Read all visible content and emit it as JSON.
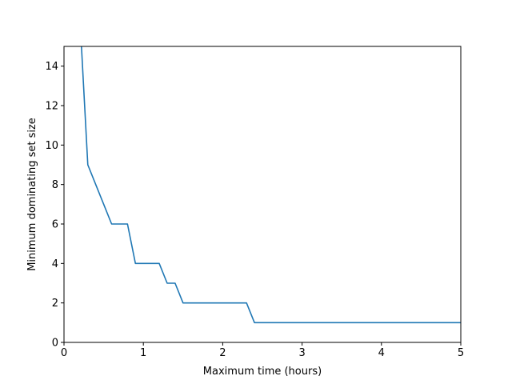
{
  "chart_data": {
    "type": "line",
    "title": "",
    "xlabel": "Maximum time (hours)",
    "ylabel": "Minimum dominating set size",
    "xlim": [
      0,
      5
    ],
    "ylim": [
      0,
      15
    ],
    "grid": false,
    "x_ticks": [
      0,
      1,
      2,
      3,
      4,
      5
    ],
    "x_tick_labels": [
      "0",
      "1",
      "2",
      "3",
      "4",
      "5"
    ],
    "y_ticks": [
      0,
      2,
      4,
      6,
      8,
      10,
      12,
      14
    ],
    "y_tick_labels": [
      "0",
      "2",
      "4",
      "6",
      "8",
      "10",
      "12",
      "14"
    ],
    "series": [
      {
        "color": "#1f77b4",
        "x": [
          0.22,
          0.3,
          0.4,
          0.5,
          0.6,
          0.7,
          0.8,
          0.9,
          1.0,
          1.1,
          1.2,
          1.3,
          1.4,
          1.5,
          1.6,
          1.7,
          1.8,
          1.9,
          2.0,
          2.1,
          2.2,
          2.3,
          2.4,
          2.5,
          3.0,
          3.5,
          4.0,
          4.5,
          5.0
        ],
        "y": [
          15,
          9,
          8,
          7,
          6,
          6,
          6,
          4,
          4,
          4,
          4,
          3,
          3,
          2,
          2,
          2,
          2,
          2,
          2,
          2,
          2,
          2,
          1,
          1,
          1,
          1,
          1,
          1,
          1
        ]
      }
    ]
  }
}
